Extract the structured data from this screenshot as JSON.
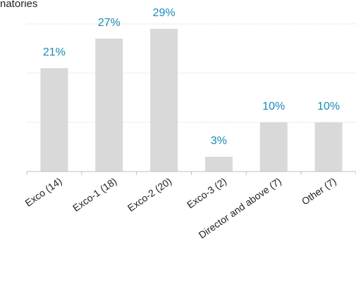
{
  "chart_data": {
    "type": "bar",
    "title": "natories",
    "categories": [
      "Exco (14)",
      "Exco-1 (18)",
      "Exco-2 (20)",
      "Exco-3 (2)",
      "Director and above (7)",
      "Other (7)"
    ],
    "values": [
      21,
      27,
      29,
      3,
      10,
      10
    ],
    "value_labels": [
      "21%",
      "27%",
      "29%",
      "3%",
      "10%",
      "10%"
    ],
    "ylim": [
      0,
      30
    ],
    "grid": true,
    "colors": {
      "bar": "#d9d9d9",
      "label": "#1a8ab5",
      "grid": "#d9d9d9",
      "axis": "#bfbfbf"
    }
  }
}
